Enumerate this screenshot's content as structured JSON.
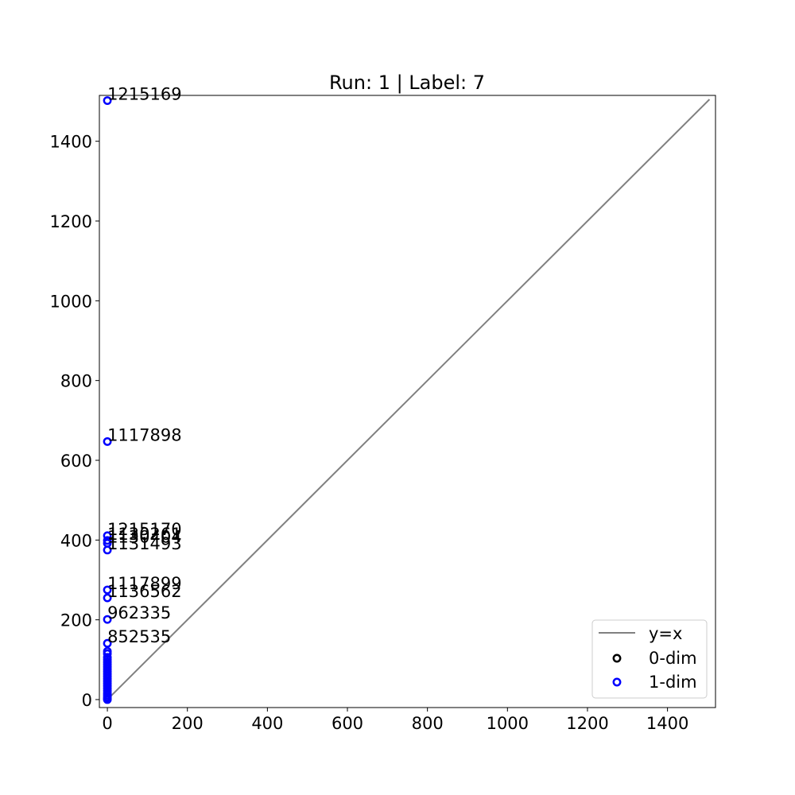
{
  "chart_data": {
    "type": "scatter",
    "title": "Run: 1 | Label: 7",
    "xlabel": "",
    "ylabel": "",
    "xlim": [
      -20,
      1520
    ],
    "ylim": [
      -20,
      1515
    ],
    "xticks": [
      0,
      200,
      400,
      600,
      800,
      1000,
      1200,
      1400
    ],
    "yticks": [
      0,
      200,
      400,
      600,
      800,
      1000,
      1200,
      1400
    ],
    "grid": false,
    "legend_position": "lower-right",
    "reference_line": {
      "name": "y=x",
      "x": [
        0,
        1505
      ],
      "y": [
        0,
        1505
      ],
      "color": "#808080"
    },
    "series": [
      {
        "name": "0-dim",
        "color": "#000000",
        "points": []
      },
      {
        "name": "1-dim",
        "color": "#0000ff",
        "points": [
          {
            "x": 0,
            "y": 1502,
            "label": "1215169"
          },
          {
            "x": 0,
            "y": 647,
            "label": "1117898"
          },
          {
            "x": 0,
            "y": 411,
            "label": "1215170"
          },
          {
            "x": 0,
            "y": 399,
            "label": "1130261"
          },
          {
            "x": 0,
            "y": 392,
            "label": "1130404"
          },
          {
            "x": 0,
            "y": 375,
            "label": "1131493"
          },
          {
            "x": 0,
            "y": 275,
            "label": "1117899"
          },
          {
            "x": 0,
            "y": 255,
            "label": "1136562"
          },
          {
            "x": 0,
            "y": 201,
            "label": "962335"
          },
          {
            "x": 0,
            "y": 141,
            "label": "852535"
          },
          {
            "x": 0,
            "y": 121
          },
          {
            "x": 0,
            "y": 115
          },
          {
            "x": 0,
            "y": 106
          },
          {
            "x": 0,
            "y": 100
          },
          {
            "x": 0,
            "y": 94
          },
          {
            "x": 0,
            "y": 88
          },
          {
            "x": 0,
            "y": 82
          },
          {
            "x": 0,
            "y": 76
          },
          {
            "x": 0,
            "y": 70
          },
          {
            "x": 0,
            "y": 64
          },
          {
            "x": 0,
            "y": 58
          },
          {
            "x": 0,
            "y": 52
          },
          {
            "x": 0,
            "y": 46
          },
          {
            "x": 0,
            "y": 40
          },
          {
            "x": 0,
            "y": 34
          },
          {
            "x": 0,
            "y": 28
          },
          {
            "x": 0,
            "y": 22
          },
          {
            "x": 0,
            "y": 16
          },
          {
            "x": 0,
            "y": 11
          },
          {
            "x": 0,
            "y": 6
          },
          {
            "x": 0,
            "y": 2
          },
          {
            "x": 0,
            "y": 0
          }
        ]
      }
    ]
  }
}
